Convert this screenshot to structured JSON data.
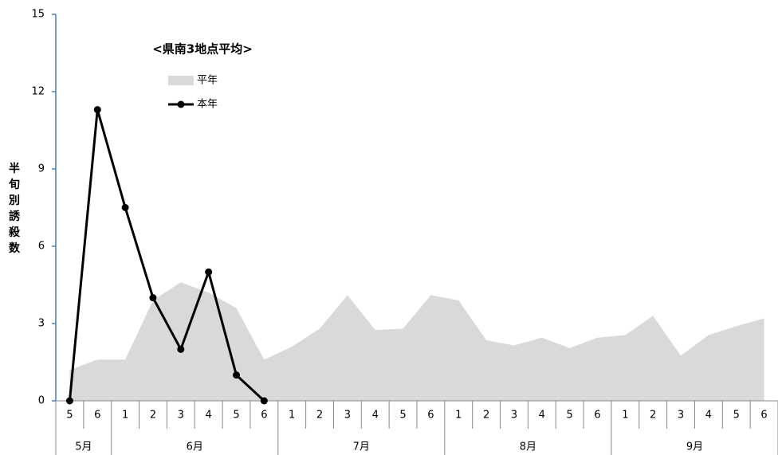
{
  "chart_data": {
    "type": "area-line",
    "title": "<県南3地点平均>",
    "y_label": "半旬別誘殺数",
    "category_groups": [
      {
        "label": "5月",
        "categories": [
          "5",
          "6"
        ]
      },
      {
        "label": "6月",
        "categories": [
          "1",
          "2",
          "3",
          "4",
          "5",
          "6"
        ]
      },
      {
        "label": "7月",
        "categories": [
          "1",
          "2",
          "3",
          "4",
          "5",
          "6"
        ]
      },
      {
        "label": "8月",
        "categories": [
          "1",
          "2",
          "3",
          "4",
          "5",
          "6"
        ]
      },
      {
        "label": "9月",
        "categories": [
          "1",
          "2",
          "3",
          "4",
          "5",
          "6"
        ]
      }
    ],
    "series": [
      {
        "name": "平年",
        "type": "area",
        "color": "#d9d9d9",
        "values": [
          1.2,
          1.6,
          1.6,
          3.9,
          4.6,
          4.2,
          3.6,
          1.6,
          2.1,
          2.8,
          4.1,
          2.75,
          2.8,
          4.1,
          3.9,
          2.35,
          2.15,
          2.45,
          2.05,
          2.45,
          2.55,
          3.3,
          1.75,
          2.55,
          2.9,
          3.2
        ]
      },
      {
        "name": "本年",
        "type": "line",
        "color": "#000000",
        "values": [
          0,
          11.3,
          7.5,
          4,
          2,
          5,
          1,
          0,
          null,
          null,
          null,
          null,
          null,
          null,
          null,
          null,
          null,
          null,
          null,
          null,
          null,
          null,
          null,
          null,
          null,
          null
        ]
      }
    ],
    "ylim": [
      0,
      15
    ],
    "yticks": [
      0,
      3,
      6,
      9,
      12,
      15
    ]
  }
}
